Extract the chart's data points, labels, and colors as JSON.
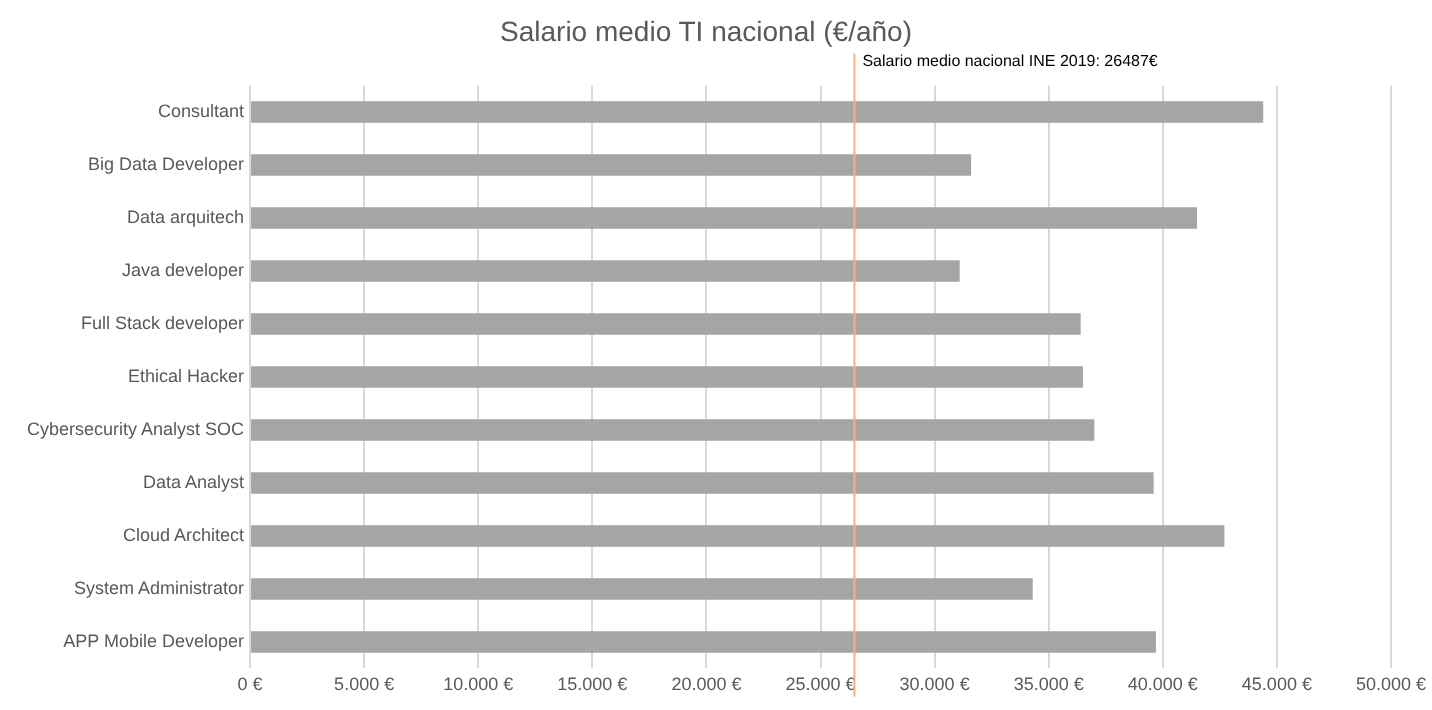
{
  "chart_data": {
    "type": "bar",
    "orientation": "horizontal",
    "title": "Salario medio TI nacional (€/año)",
    "categories": [
      "Consultant",
      "Big Data Developer",
      "Data arquitech",
      "Java developer",
      "Full Stack developer",
      "Ethical Hacker",
      "Cybersecurity Analyst SOC",
      "Data Analyst",
      "Cloud Architect",
      "System Administrator",
      "APP Mobile Developer"
    ],
    "values": [
      44400,
      31600,
      41500,
      31100,
      36400,
      36500,
      37000,
      39600,
      42700,
      34300,
      39700
    ],
    "color": "#a5a5a5",
    "xlim": [
      0,
      50000
    ],
    "xticks": [
      {
        "value": 0,
        "label": "0 €"
      },
      {
        "value": 5000,
        "label": "5.000 €"
      },
      {
        "value": 10000,
        "label": "10.000 €"
      },
      {
        "value": 15000,
        "label": "15.000 €"
      },
      {
        "value": 20000,
        "label": "20.000 €"
      },
      {
        "value": 25000,
        "label": "25.000 €"
      },
      {
        "value": 30000,
        "label": "30.000 €"
      },
      {
        "value": 35000,
        "label": "35.000 €"
      },
      {
        "value": 40000,
        "label": "40.000 €"
      },
      {
        "value": 45000,
        "label": "45.000 €"
      },
      {
        "value": 50000,
        "label": "50.000 €"
      }
    ],
    "grid": "x",
    "ref_lines": [
      {
        "axis": "x",
        "value": 26487,
        "label": "Salario medio nacional INE 2019: 26487€",
        "color": "#f4b183"
      }
    ]
  }
}
